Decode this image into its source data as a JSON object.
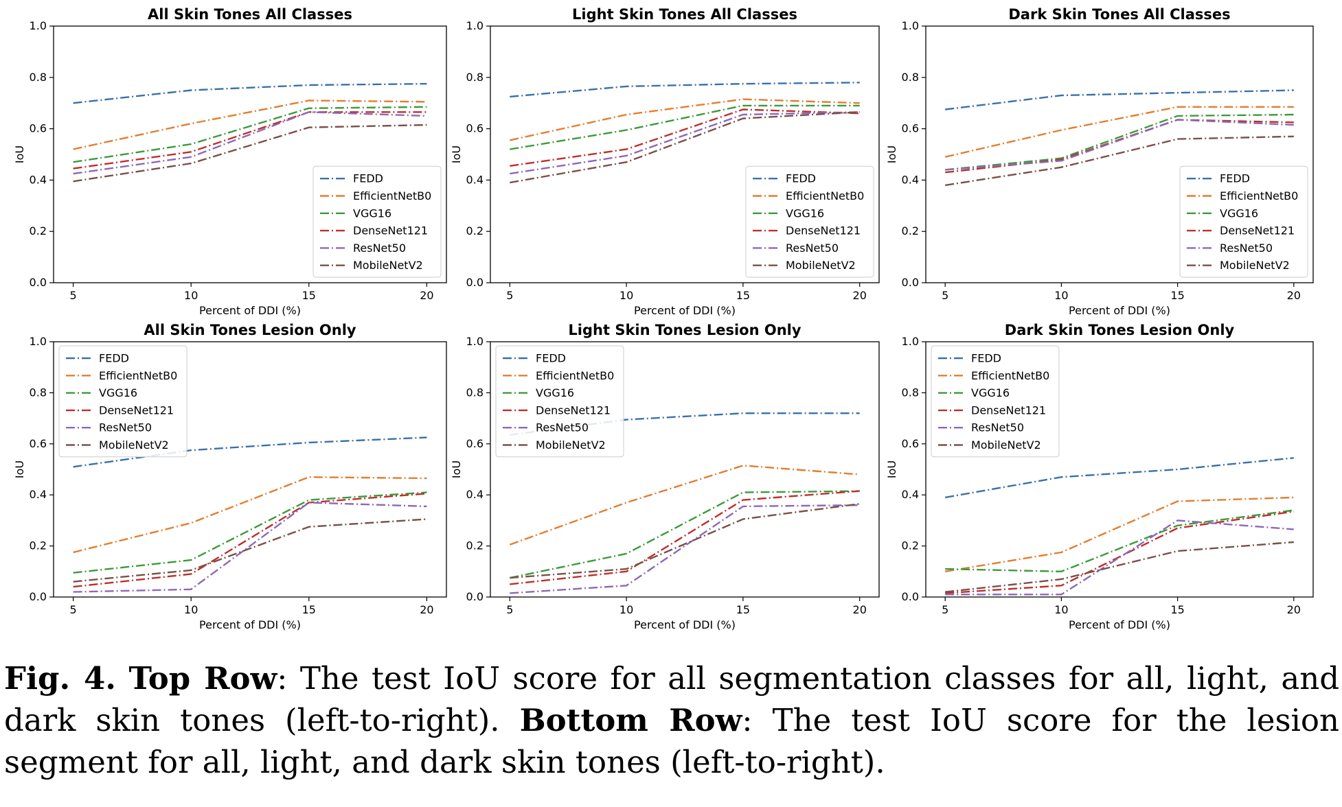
{
  "figure": {
    "colors": {
      "FEDD": "#3a70a8",
      "EfficientNetB0": "#e47d2e",
      "VGG16": "#3c9a3c",
      "DenseNet121": "#bd2f2c",
      "ResNet50": "#8c68b8",
      "MobileNetV2": "#7a5048"
    },
    "caption": {
      "fig_label": "Fig. 4.",
      "top_label": "Top Row",
      "top_text": ": The test IoU score for all segmentation classes for all, light, and dark skin tones (left-to-right).",
      "bottom_label": "Bottom Row",
      "bottom_text": ": The test IoU score for the lesion segment for all, light, and dark skin tones (left-to-right)."
    }
  },
  "chart_data": [
    {
      "type": "line",
      "title": "All Skin Tones All Classes",
      "xlabel": "Percent of DDI (%)",
      "ylabel": "IoU",
      "x": [
        5,
        10,
        15,
        20
      ],
      "xticks": [
        "5",
        "10",
        "15",
        "20"
      ],
      "ylim": [
        0.0,
        1.0
      ],
      "yticks": [
        "0.0",
        "0.2",
        "0.4",
        "0.6",
        "0.8",
        "1.0"
      ],
      "legend": "lower-right",
      "series": [
        {
          "name": "FEDD",
          "values": [
            0.7,
            0.75,
            0.77,
            0.775
          ]
        },
        {
          "name": "EfficientNetB0",
          "values": [
            0.52,
            0.62,
            0.71,
            0.705
          ]
        },
        {
          "name": "VGG16",
          "values": [
            0.47,
            0.54,
            0.68,
            0.685
          ]
        },
        {
          "name": "DenseNet121",
          "values": [
            0.445,
            0.51,
            0.665,
            0.665
          ]
        },
        {
          "name": "ResNet50",
          "values": [
            0.425,
            0.49,
            0.665,
            0.65
          ]
        },
        {
          "name": "MobileNetV2",
          "values": [
            0.395,
            0.465,
            0.605,
            0.615
          ]
        }
      ]
    },
    {
      "type": "line",
      "title": "Light Skin Tones All Classes",
      "xlabel": "Percent of DDI (%)",
      "ylabel": "IoU",
      "x": [
        5,
        10,
        15,
        20
      ],
      "xticks": [
        "5",
        "10",
        "15",
        "20"
      ],
      "ylim": [
        0.0,
        1.0
      ],
      "yticks": [
        "0.0",
        "0.2",
        "0.4",
        "0.6",
        "0.8",
        "1.0"
      ],
      "legend": "lower-right",
      "series": [
        {
          "name": "FEDD",
          "values": [
            0.725,
            0.765,
            0.775,
            0.78
          ]
        },
        {
          "name": "EfficientNetB0",
          "values": [
            0.555,
            0.655,
            0.715,
            0.7
          ]
        },
        {
          "name": "VGG16",
          "values": [
            0.52,
            0.595,
            0.69,
            0.69
          ]
        },
        {
          "name": "DenseNet121",
          "values": [
            0.455,
            0.52,
            0.675,
            0.66
          ]
        },
        {
          "name": "ResNet50",
          "values": [
            0.425,
            0.495,
            0.655,
            0.665
          ]
        },
        {
          "name": "MobileNetV2",
          "values": [
            0.39,
            0.47,
            0.64,
            0.665
          ]
        }
      ]
    },
    {
      "type": "line",
      "title": "Dark Skin Tones All Classes",
      "xlabel": "Percent of DDI (%)",
      "ylabel": "IoU",
      "x": [
        5,
        10,
        15,
        20
      ],
      "xticks": [
        "5",
        "10",
        "15",
        "20"
      ],
      "ylim": [
        0.0,
        1.0
      ],
      "yticks": [
        "0.0",
        "0.2",
        "0.4",
        "0.6",
        "0.8",
        "1.0"
      ],
      "legend": "lower-right",
      "series": [
        {
          "name": "FEDD",
          "values": [
            0.675,
            0.73,
            0.74,
            0.75
          ]
        },
        {
          "name": "EfficientNetB0",
          "values": [
            0.49,
            0.595,
            0.685,
            0.685
          ]
        },
        {
          "name": "VGG16",
          "values": [
            0.44,
            0.485,
            0.65,
            0.655
          ]
        },
        {
          "name": "DenseNet121",
          "values": [
            0.43,
            0.48,
            0.635,
            0.625
          ]
        },
        {
          "name": "ResNet50",
          "values": [
            0.44,
            0.475,
            0.635,
            0.615
          ]
        },
        {
          "name": "MobileNetV2",
          "values": [
            0.38,
            0.45,
            0.56,
            0.57
          ]
        }
      ]
    },
    {
      "type": "line",
      "title": "All Skin Tones Lesion Only",
      "xlabel": "Percent of DDI (%)",
      "ylabel": "IoU",
      "x": [
        5,
        10,
        15,
        20
      ],
      "xticks": [
        "5",
        "10",
        "15",
        "20"
      ],
      "ylim": [
        0.0,
        1.0
      ],
      "yticks": [
        "0.0",
        "0.2",
        "0.4",
        "0.6",
        "0.8",
        "1.0"
      ],
      "legend": "upper-left",
      "series": [
        {
          "name": "FEDD",
          "values": [
            0.51,
            0.575,
            0.605,
            0.625
          ]
        },
        {
          "name": "EfficientNetB0",
          "values": [
            0.175,
            0.29,
            0.47,
            0.465
          ]
        },
        {
          "name": "VGG16",
          "values": [
            0.095,
            0.145,
            0.38,
            0.41
          ]
        },
        {
          "name": "DenseNet121",
          "values": [
            0.04,
            0.09,
            0.37,
            0.405
          ]
        },
        {
          "name": "ResNet50",
          "values": [
            0.02,
            0.03,
            0.37,
            0.355
          ]
        },
        {
          "name": "MobileNetV2",
          "values": [
            0.06,
            0.105,
            0.275,
            0.305
          ]
        }
      ]
    },
    {
      "type": "line",
      "title": "Light Skin Tones Lesion Only",
      "xlabel": "Percent of DDI (%)",
      "ylabel": "IoU",
      "x": [
        5,
        10,
        15,
        20
      ],
      "xticks": [
        "5",
        "10",
        "15",
        "20"
      ],
      "ylim": [
        0.0,
        1.0
      ],
      "yticks": [
        "0.0",
        "0.2",
        "0.4",
        "0.6",
        "0.8",
        "1.0"
      ],
      "legend": "upper-left",
      "series": [
        {
          "name": "FEDD",
          "values": [
            0.635,
            0.695,
            0.72,
            0.72
          ]
        },
        {
          "name": "EfficientNetB0",
          "values": [
            0.205,
            0.37,
            0.515,
            0.48
          ]
        },
        {
          "name": "VGG16",
          "values": [
            0.075,
            0.17,
            0.41,
            0.415
          ]
        },
        {
          "name": "DenseNet121",
          "values": [
            0.05,
            0.1,
            0.38,
            0.415
          ]
        },
        {
          "name": "ResNet50",
          "values": [
            0.015,
            0.045,
            0.355,
            0.36
          ]
        },
        {
          "name": "MobileNetV2",
          "values": [
            0.075,
            0.11,
            0.305,
            0.365
          ]
        }
      ]
    },
    {
      "type": "line",
      "title": "Dark Skin Tones Lesion Only",
      "xlabel": "Percent of DDI (%)",
      "ylabel": "IoU",
      "x": [
        5,
        10,
        15,
        20
      ],
      "xticks": [
        "5",
        "10",
        "15",
        "20"
      ],
      "ylim": [
        0.0,
        1.0
      ],
      "yticks": [
        "0.0",
        "0.2",
        "0.4",
        "0.6",
        "0.8",
        "1.0"
      ],
      "legend": "upper-left",
      "series": [
        {
          "name": "FEDD",
          "values": [
            0.39,
            0.47,
            0.5,
            0.545
          ]
        },
        {
          "name": "EfficientNetB0",
          "values": [
            0.1,
            0.175,
            0.375,
            0.39
          ]
        },
        {
          "name": "VGG16",
          "values": [
            0.11,
            0.1,
            0.28,
            0.34
          ]
        },
        {
          "name": "DenseNet121",
          "values": [
            0.015,
            0.045,
            0.27,
            0.335
          ]
        },
        {
          "name": "ResNet50",
          "values": [
            0.01,
            0.01,
            0.3,
            0.265
          ]
        },
        {
          "name": "MobileNetV2",
          "values": [
            0.02,
            0.07,
            0.18,
            0.215
          ]
        }
      ]
    }
  ]
}
